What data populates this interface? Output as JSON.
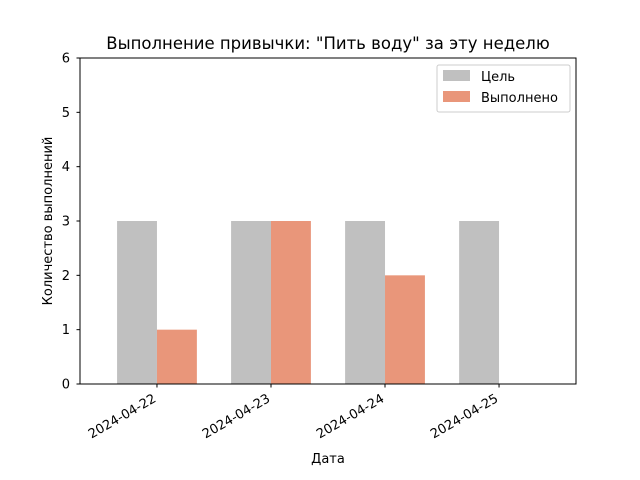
{
  "chart_data": {
    "type": "bar",
    "title": "Выполнение привычки: \"Пить воду\" за эту неделю",
    "xlabel": "Дата",
    "ylabel": "Количество выполнений",
    "categories": [
      "2024-04-22",
      "2024-04-23",
      "2024-04-24",
      "2024-04-25"
    ],
    "ylim": [
      0,
      6
    ],
    "yticks": [
      0,
      1,
      2,
      3,
      4,
      5,
      6
    ],
    "grid": false,
    "legend_position": "top-right",
    "series": [
      {
        "name": "Цель",
        "values": [
          3,
          3,
          3,
          3
        ],
        "color": "#c0c0c0"
      },
      {
        "name": "Выполнено",
        "values": [
          1,
          3,
          2,
          0
        ],
        "color": "#e9967a"
      }
    ]
  }
}
